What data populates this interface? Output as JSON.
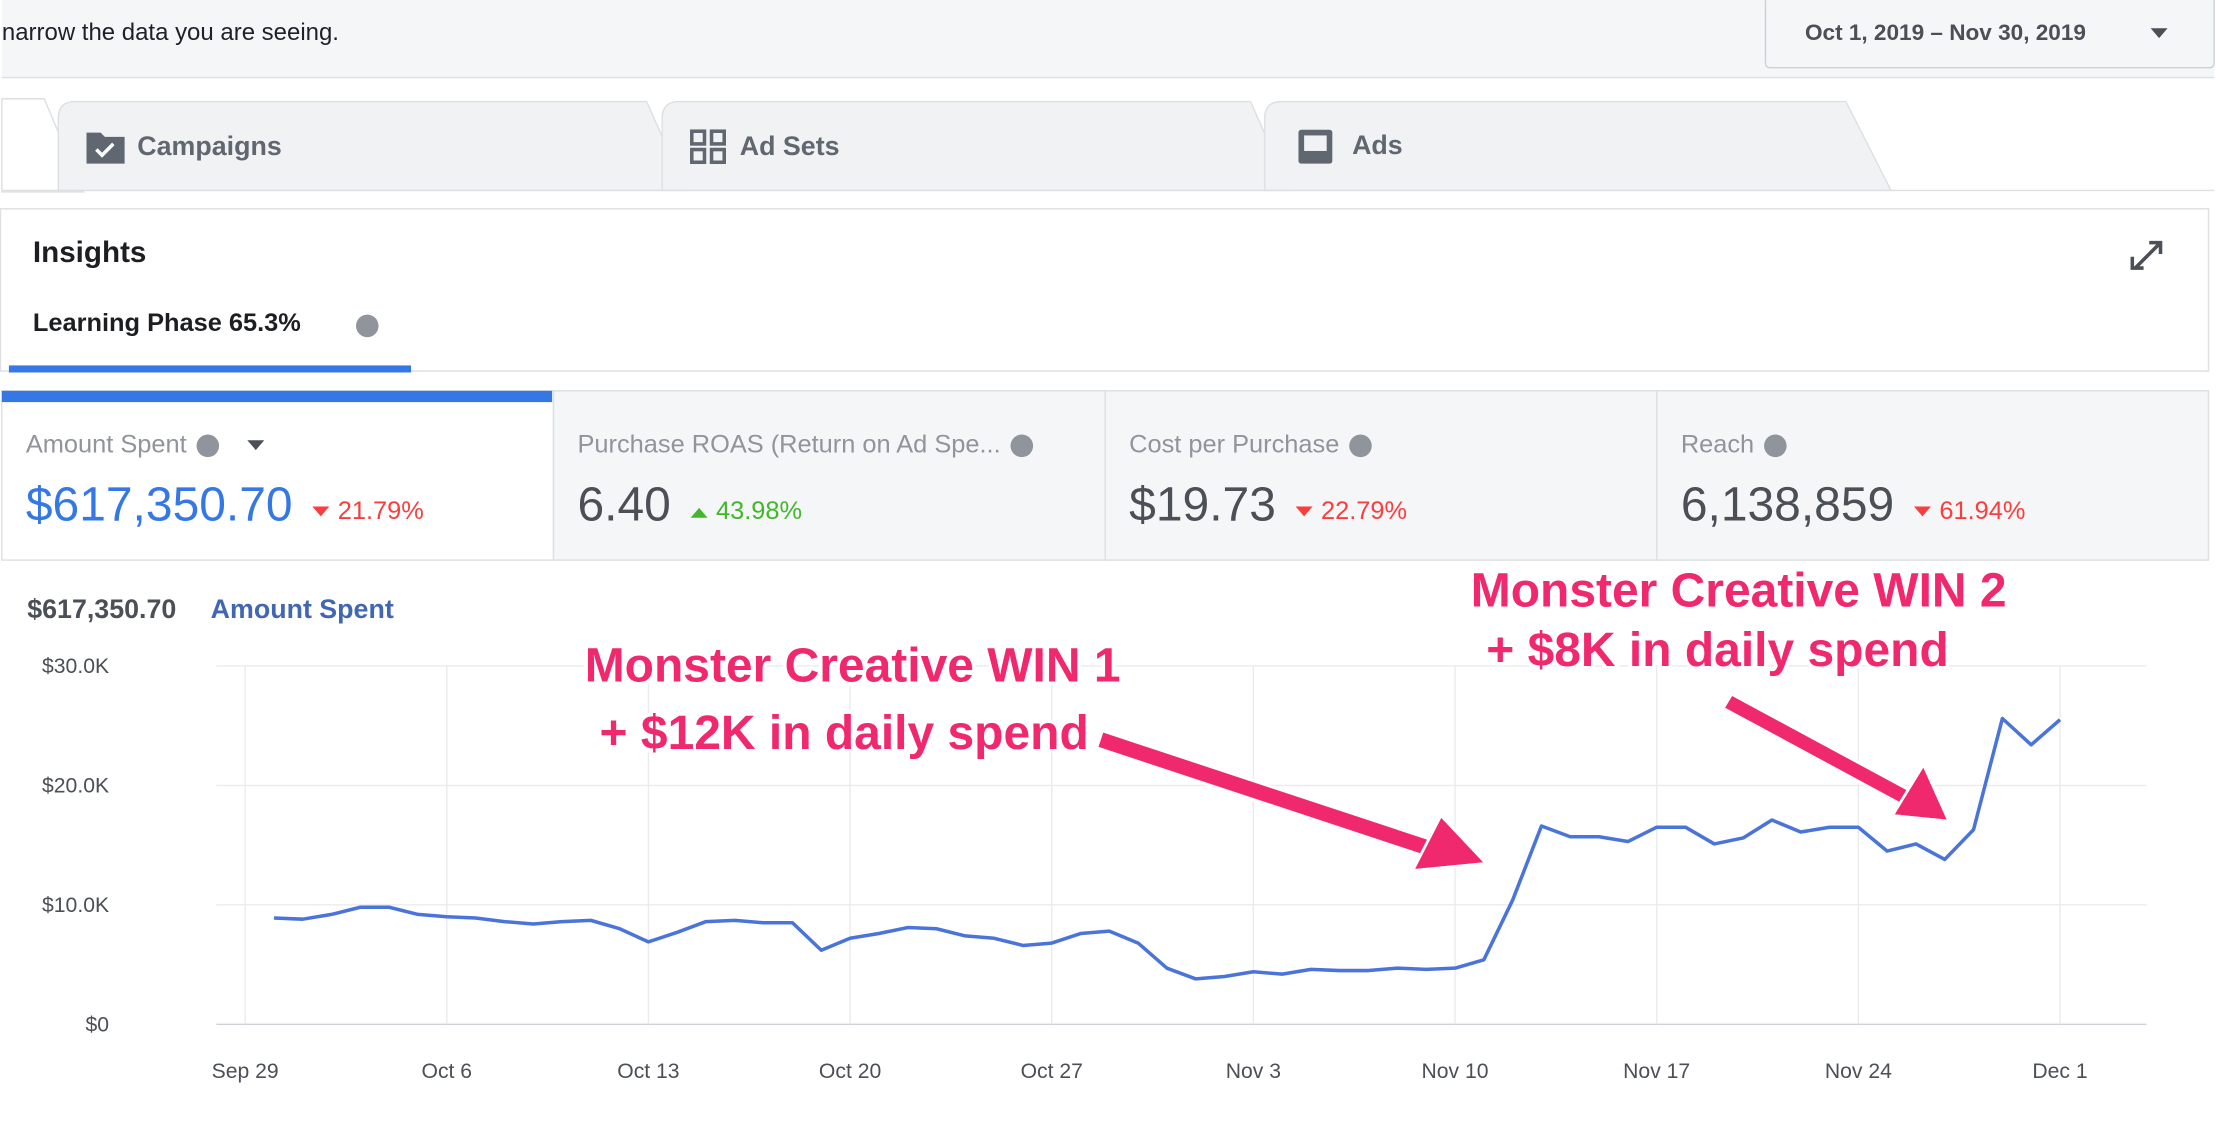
{
  "header": {
    "hint": "narrow the data you are seeing.",
    "date_range": "Oct 1, 2019 – Nov 30, 2019"
  },
  "tabs": [
    "Campaigns",
    "Ad Sets",
    "Ads"
  ],
  "insights": {
    "title": "Insights",
    "tab": "Learning Phase 65.3%"
  },
  "metrics": [
    {
      "label": "Amount Spent",
      "value": "$617,350.70",
      "change": "21.79%",
      "direction": "down"
    },
    {
      "label": "Purchase ROAS (Return on Ad Spe...",
      "value": "6.40",
      "change": "43.98%",
      "direction": "up"
    },
    {
      "label": "Cost per Purchase",
      "value": "$19.73",
      "change": "22.79%",
      "direction": "down"
    },
    {
      "label": "Reach",
      "value": "6,138,859",
      "change": "61.94%",
      "direction": "down"
    }
  ],
  "chart_data": {
    "type": "line",
    "total": "$617,350.70",
    "series_label": "Amount Spent",
    "annotations": [
      [
        "Monster Creative WIN 1",
        "+ $12K in daily spend"
      ],
      [
        "Monster Creative WIN 2",
        "+ $8K in daily spend"
      ]
    ],
    "xlim": [
      -1,
      66
    ],
    "xticks": [
      {
        "value": 0,
        "label": "Sep 29"
      },
      {
        "value": 7,
        "label": "Oct 6"
      },
      {
        "value": 14,
        "label": "Oct 13"
      },
      {
        "value": 21,
        "label": "Oct 20"
      },
      {
        "value": 28,
        "label": "Oct 27"
      },
      {
        "value": 35,
        "label": "Nov 3"
      },
      {
        "value": 42,
        "label": "Nov 10"
      },
      {
        "value": 49,
        "label": "Nov 17"
      },
      {
        "value": 56,
        "label": "Nov 24"
      },
      {
        "value": 63,
        "label": "Dec 1"
      }
    ],
    "ylim": [
      0,
      30000
    ],
    "yticks": [
      {
        "value": 0,
        "label": "$0"
      },
      {
        "value": 10000,
        "label": "$10.0K"
      },
      {
        "value": 20000,
        "label": "$20.0K"
      },
      {
        "value": 30000,
        "label": "$30.0K"
      }
    ],
    "grid": true,
    "series": [
      {
        "name": "Amount Spent",
        "color": "#4a74d9",
        "x": [
          1,
          2,
          3,
          4,
          5,
          6,
          7,
          8,
          9,
          10,
          11,
          12,
          13,
          14,
          15,
          16,
          17,
          18,
          19,
          20,
          21,
          22,
          23,
          24,
          25,
          26,
          27,
          28,
          29,
          30,
          31,
          32,
          33,
          34,
          35,
          36,
          37,
          38,
          39,
          40,
          41,
          42,
          43,
          44,
          45,
          46,
          47,
          48,
          49,
          50,
          51,
          52,
          53,
          54,
          55,
          56,
          57,
          58,
          59,
          60,
          61,
          62,
          63
        ],
        "values": [
          8900,
          8800,
          9200,
          9800,
          9800,
          9200,
          9000,
          8900,
          8600,
          8400,
          8600,
          8700,
          8000,
          6900,
          7700,
          8600,
          8700,
          8500,
          8500,
          6200,
          7200,
          7600,
          8100,
          8000,
          7400,
          7200,
          6600,
          6800,
          7600,
          7800,
          6800,
          4700,
          3800,
          4000,
          4400,
          4200,
          4600,
          4500,
          4500,
          4700,
          4600,
          4700,
          5400,
          10400,
          16600,
          15700,
          15700,
          15300,
          16500,
          16500,
          15100,
          15600,
          17100,
          16100,
          16500,
          16500,
          14500,
          15100,
          13800,
          16300,
          25600,
          23400,
          25500
        ]
      }
    ]
  }
}
